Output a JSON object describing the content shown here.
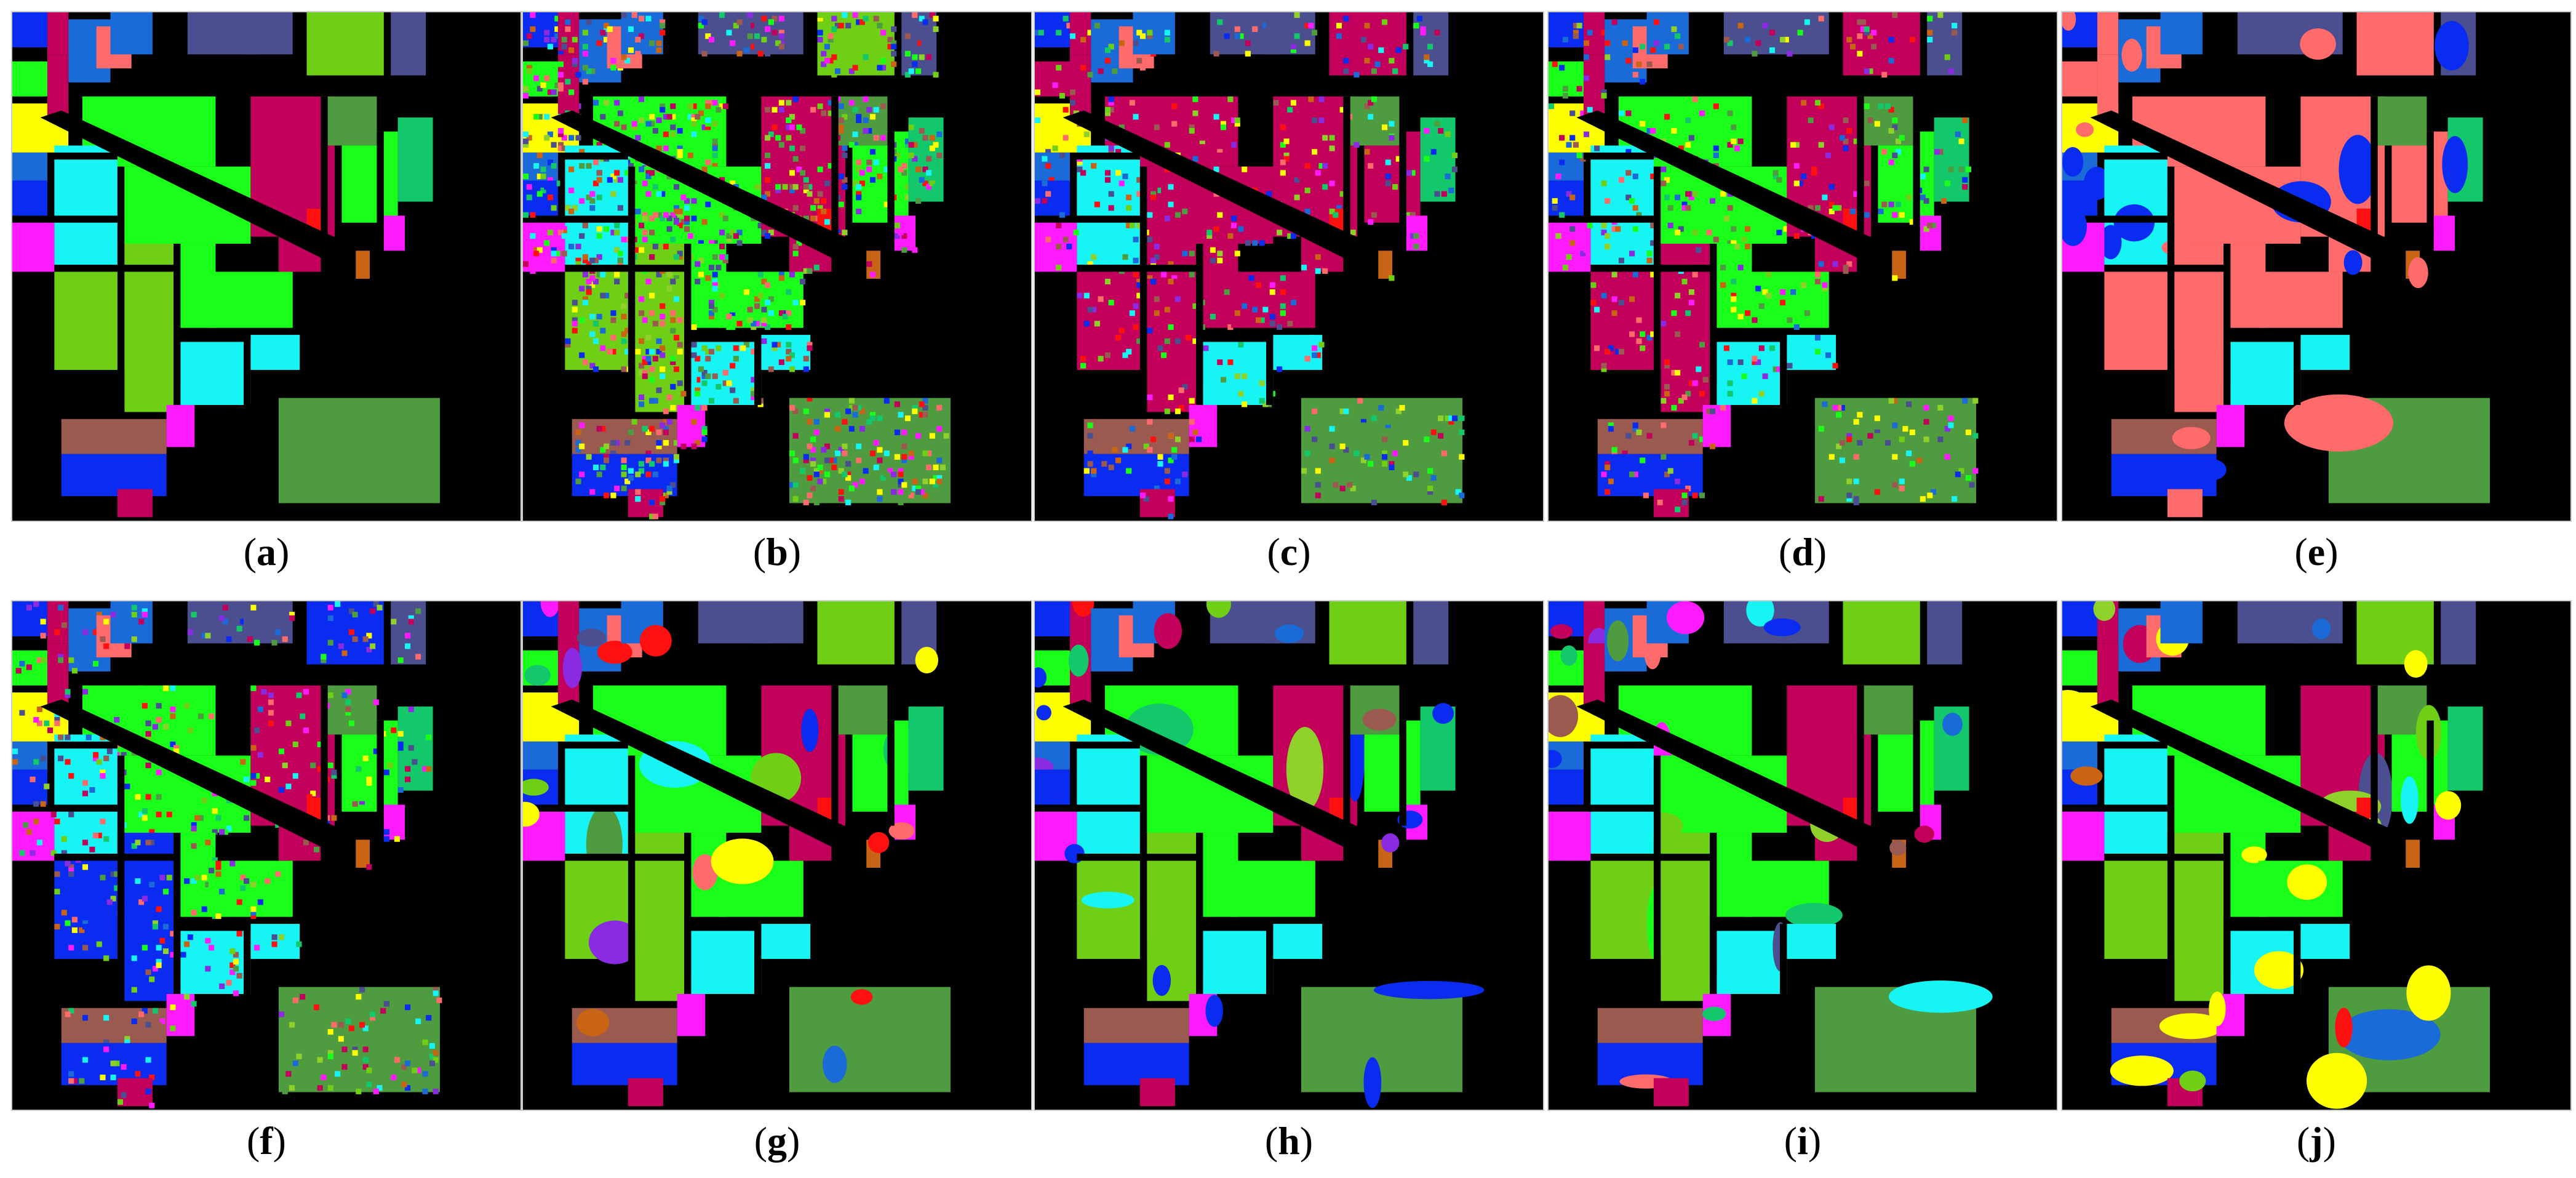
{
  "figure": {
    "panels": [
      {
        "id": "a",
        "label": "a",
        "kind": "ground-truth"
      },
      {
        "id": "b",
        "label": "b",
        "kind": "noisy"
      },
      {
        "id": "c",
        "label": "c",
        "kind": "noisy-red"
      },
      {
        "id": "d",
        "label": "d",
        "kind": "noisy-green"
      },
      {
        "id": "e",
        "label": "e",
        "kind": "salmon"
      },
      {
        "id": "f",
        "label": "f",
        "kind": "noisy-blue"
      },
      {
        "id": "g",
        "label": "g",
        "kind": "smooth"
      },
      {
        "id": "h",
        "label": "h",
        "kind": "smooth-blue"
      },
      {
        "id": "i",
        "label": "i",
        "kind": "smooth"
      },
      {
        "id": "j",
        "label": "j",
        "kind": "smooth-yellow"
      }
    ],
    "colors": {
      "background": "#000000",
      "navy": "#4b4f8f",
      "blue": "#0a2cf0",
      "lime": "#1aff1a",
      "yellowgreen": "#6fcf14",
      "olivegreen": "#8fd12a",
      "green_dark": "#4f9b3f",
      "teal": "#12c86a",
      "cyan": "#17f4f4",
      "magenta": "#ff1aff",
      "crimson": "#c2005c",
      "salmon": "#ff6a6a",
      "yellow": "#ffff00",
      "red": "#ff1010",
      "brown": "#9a5a50",
      "orange": "#c86414",
      "steelblue": "#1a6ad8",
      "mediumpurple": "#8a2be2"
    }
  }
}
